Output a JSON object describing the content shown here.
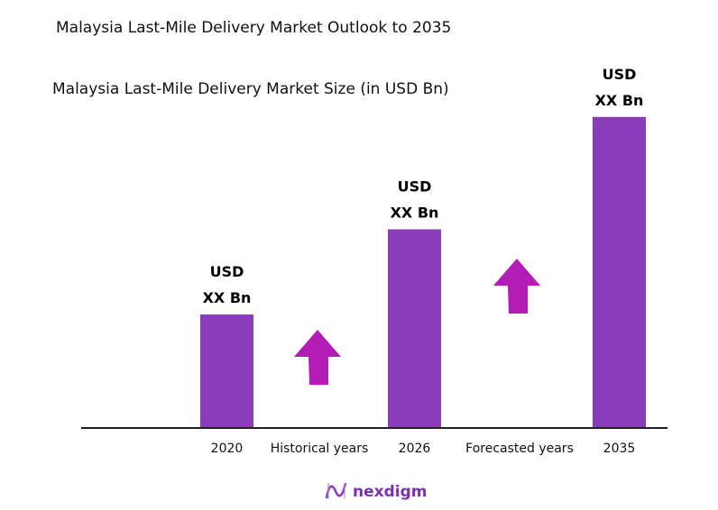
{
  "chart_data": {
    "type": "bar",
    "title": "Malaysia Last-Mile Delivery Market Outlook to 2035",
    "subtitle": "Malaysia Last-Mile Delivery Market Size (in USD Bn)",
    "categories": [
      "2020",
      "2026",
      "2035"
    ],
    "values": [
      1.0,
      1.75,
      2.74
    ],
    "value_note": "relative heights; values not printed",
    "data_labels": [
      [
        "USD",
        "XX Bn"
      ],
      [
        "USD",
        "XX Bn"
      ],
      [
        "USD",
        "XX Bn"
      ]
    ],
    "period_labels": [
      "Historical years",
      "Forecasted years"
    ],
    "xlabel": "",
    "ylabel": "",
    "ylim": [
      0,
      2.9
    ],
    "grid": false,
    "colors": {
      "bar": "#8A3DB8",
      "arrow": "#B31DB6",
      "axis": "#222222"
    }
  },
  "brand": {
    "name": "nexdigm"
  }
}
